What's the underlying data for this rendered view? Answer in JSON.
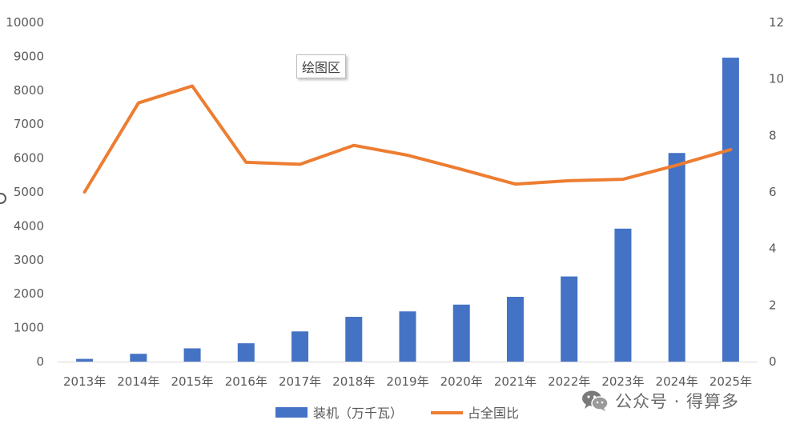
{
  "chart_data": {
    "type": "bar",
    "categories": [
      "2013年",
      "2014年",
      "2015年",
      "2016年",
      "2017年",
      "2018年",
      "2019年",
      "2020年",
      "2021年",
      "2022年",
      "2023年",
      "2024年",
      "2025年"
    ],
    "series": [
      {
        "name": "装机（万千瓦）",
        "type": "bar",
        "axis": "left",
        "color": "#4472C4",
        "values": [
          80,
          230,
          390,
          540,
          890,
          1320,
          1480,
          1680,
          1910,
          2510,
          3920,
          6150,
          8960
        ]
      },
      {
        "name": "占全国比",
        "type": "line",
        "axis": "right",
        "color": "#ED7D31",
        "values": [
          6.0,
          9.15,
          9.75,
          7.05,
          6.98,
          7.65,
          7.3,
          6.8,
          6.28,
          6.4,
          6.45,
          6.95,
          7.5
        ]
      }
    ],
    "y_left": {
      "min": 0,
      "max": 10000,
      "ticks": [
        0,
        1000,
        2000,
        3000,
        4000,
        5000,
        6000,
        7000,
        8000,
        9000,
        10000
      ]
    },
    "y_right": {
      "min": 0,
      "max": 12,
      "ticks": [
        0,
        2,
        4,
        6,
        8,
        10,
        12
      ]
    },
    "grid": false,
    "legend": {
      "placement": "bottom"
    }
  },
  "tooltip": "绘图区",
  "watermark": {
    "icon": "wechat-icon",
    "text": "公众号 · 得算多"
  }
}
